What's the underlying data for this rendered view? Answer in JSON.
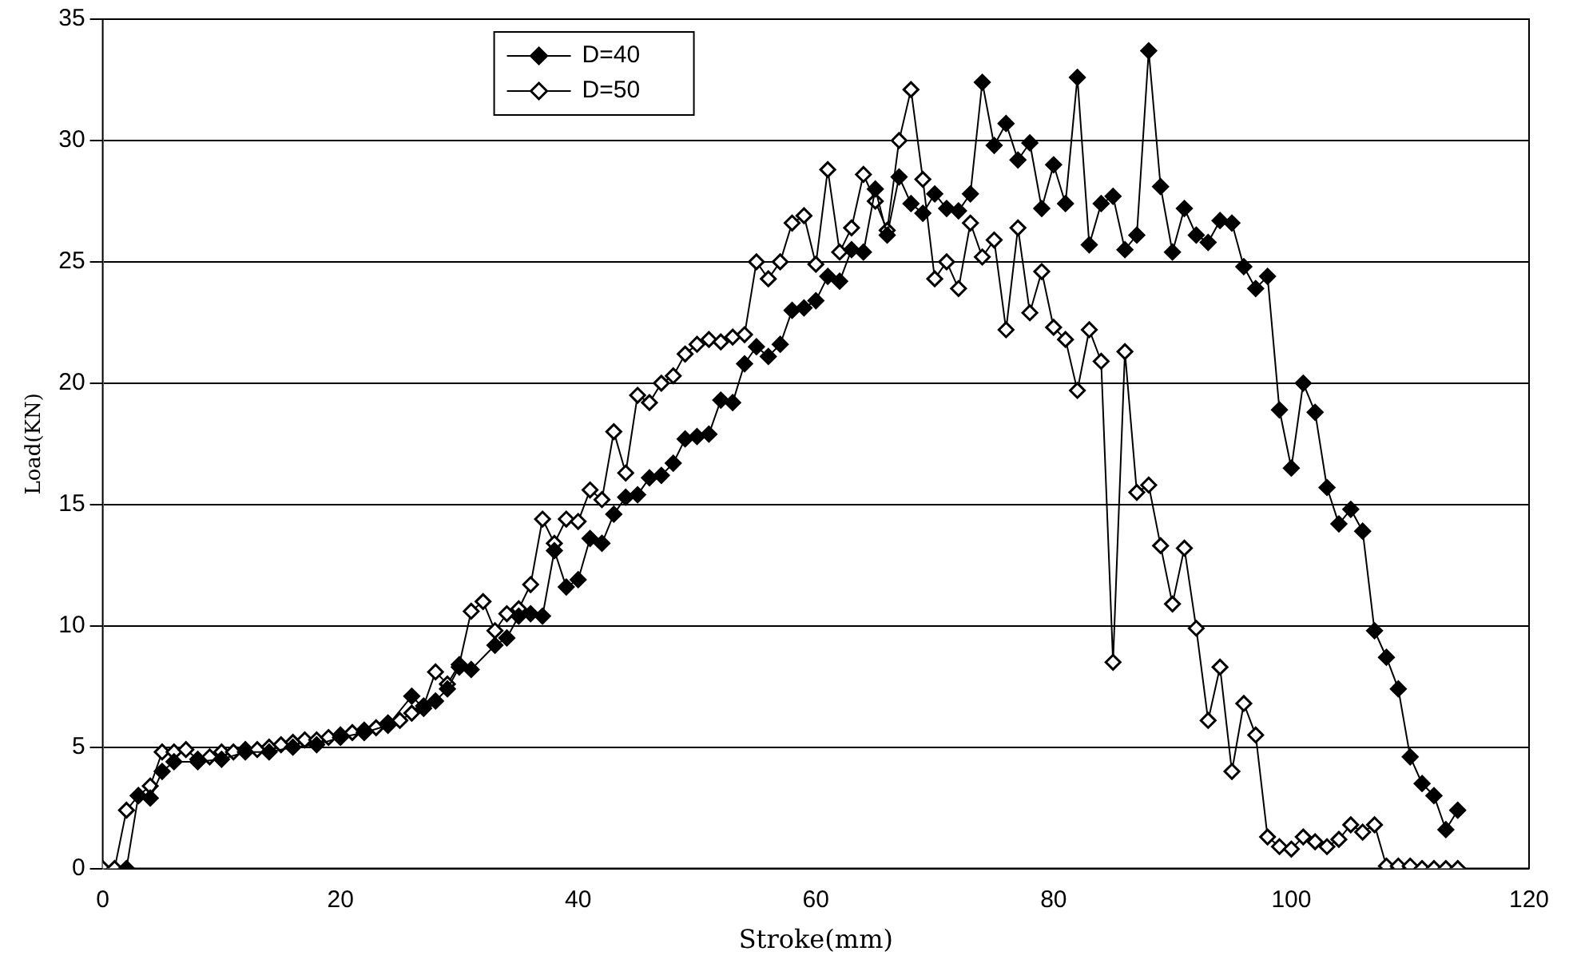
{
  "chart_data": {
    "type": "line",
    "xlabel": "Stroke(mm)",
    "ylabel": "Load(KN)",
    "xlim": [
      0,
      120
    ],
    "xticks": [
      0,
      20,
      40,
      60,
      80,
      100,
      120
    ],
    "ylim": [
      0,
      35
    ],
    "yticks": [
      0,
      5,
      10,
      15,
      20,
      25,
      30,
      35
    ],
    "grid": "y",
    "legend": "top left",
    "marker": "diamond",
    "line_style": "solid",
    "series": [
      {
        "name": "D=40",
        "color": "#000000",
        "x": [
          2,
          3,
          4,
          5,
          6,
          8,
          10,
          12,
          14,
          16,
          18,
          20,
          22,
          24,
          26,
          27,
          28,
          29,
          30,
          31,
          33,
          34,
          35,
          36,
          37,
          38,
          39,
          40,
          41,
          42,
          43,
          44,
          45,
          46,
          47,
          48,
          49,
          50,
          51,
          52,
          53,
          54,
          55,
          56,
          57,
          58,
          59,
          60,
          61,
          62,
          63,
          64,
          65,
          66,
          67,
          68,
          69,
          70,
          71,
          72,
          73,
          74,
          75,
          76,
          77,
          78,
          79,
          80,
          81,
          82,
          83,
          84,
          85,
          86,
          87,
          88,
          89,
          90,
          91,
          92,
          93,
          94,
          95,
          96,
          97,
          98,
          99,
          100,
          101,
          102,
          103,
          104,
          105,
          106,
          107,
          108,
          109,
          110,
          111,
          112,
          113,
          114
        ],
        "values": [
          0,
          3.0,
          2.9,
          4.0,
          4.4,
          4.4,
          4.5,
          4.8,
          4.8,
          5.0,
          5.1,
          5.4,
          5.6,
          5.9,
          7.1,
          6.6,
          6.9,
          7.4,
          8.3,
          8.2,
          9.2,
          9.5,
          10.4,
          10.5,
          10.4,
          13.1,
          11.6,
          11.9,
          13.6,
          13.4,
          14.6,
          15.3,
          15.4,
          16.1,
          16.2,
          16.7,
          17.7,
          17.8,
          17.9,
          19.3,
          19.2,
          20.8,
          21.5,
          21.1,
          21.6,
          23.0,
          23.1,
          23.4,
          24.4,
          24.2,
          25.5,
          25.4,
          28.0,
          26.1,
          28.5,
          27.4,
          27.0,
          27.8,
          27.2,
          27.1,
          27.8,
          32.4,
          29.8,
          30.7,
          29.2,
          29.9,
          27.2,
          29.0,
          27.4,
          32.6,
          25.7,
          27.4,
          27.7,
          25.5,
          26.1,
          33.7,
          28.1,
          25.4,
          27.2,
          26.1,
          25.8,
          26.7,
          26.6,
          24.8,
          23.9,
          24.4,
          18.9,
          16.5,
          20.0,
          18.8,
          15.7,
          14.2,
          14.8,
          13.9,
          9.8,
          8.7,
          7.4,
          4.6,
          3.5,
          3.0,
          1.6,
          2.4
        ]
      },
      {
        "name": "D=50",
        "color": "#000000",
        "x": [
          0,
          1,
          2,
          3,
          4,
          5,
          6,
          7,
          8,
          9,
          10,
          11,
          12,
          13,
          14,
          15,
          16,
          17,
          18,
          19,
          20,
          21,
          22,
          23,
          24,
          25,
          26,
          27,
          28,
          29,
          30,
          31,
          32,
          33,
          34,
          35,
          36,
          37,
          38,
          39,
          40,
          41,
          42,
          43,
          44,
          45,
          46,
          47,
          48,
          49,
          50,
          51,
          52,
          53,
          54,
          55,
          56,
          57,
          58,
          59,
          60,
          61,
          62,
          63,
          64,
          65,
          66,
          67,
          68,
          69,
          70,
          71,
          72,
          73,
          74,
          75,
          76,
          77,
          78,
          79,
          80,
          81,
          82,
          83,
          84,
          85,
          86,
          87,
          88,
          89,
          90,
          91,
          92,
          93,
          94,
          95,
          96,
          97,
          98,
          99,
          100,
          101,
          102,
          103,
          104,
          105,
          106,
          107,
          108,
          109,
          110,
          111,
          112,
          113,
          114
        ],
        "values": [
          0,
          0,
          2.4,
          3.0,
          3.4,
          4.8,
          4.8,
          4.9,
          4.5,
          4.6,
          4.8,
          4.8,
          4.9,
          4.9,
          5.0,
          5.1,
          5.2,
          5.3,
          5.3,
          5.4,
          5.5,
          5.6,
          5.7,
          5.8,
          6.0,
          6.1,
          6.4,
          6.7,
          8.1,
          7.6,
          8.4,
          10.6,
          11.0,
          9.8,
          10.5,
          10.7,
          11.7,
          14.4,
          13.4,
          14.4,
          14.3,
          15.6,
          15.2,
          18.0,
          16.3,
          19.5,
          19.2,
          20.0,
          20.3,
          21.2,
          21.6,
          21.8,
          21.7,
          21.9,
          22.0,
          25.0,
          24.3,
          25.0,
          26.6,
          26.9,
          24.9,
          28.8,
          25.4,
          26.4,
          28.6,
          27.5,
          26.3,
          30.0,
          32.1,
          28.4,
          24.3,
          25.0,
          23.9,
          26.6,
          25.2,
          25.9,
          22.2,
          26.4,
          22.9,
          24.6,
          22.3,
          21.8,
          19.7,
          22.2,
          20.9,
          8.5,
          21.3,
          15.5,
          15.8,
          13.3,
          10.9,
          13.2,
          9.9,
          6.1,
          8.3,
          4.0,
          6.8,
          5.5,
          1.3,
          0.9,
          0.8,
          1.3,
          1.1,
          0.9,
          1.2,
          1.8,
          1.5,
          1.8,
          0.1,
          0.1,
          0.1,
          0,
          0,
          0,
          0
        ]
      }
    ]
  }
}
